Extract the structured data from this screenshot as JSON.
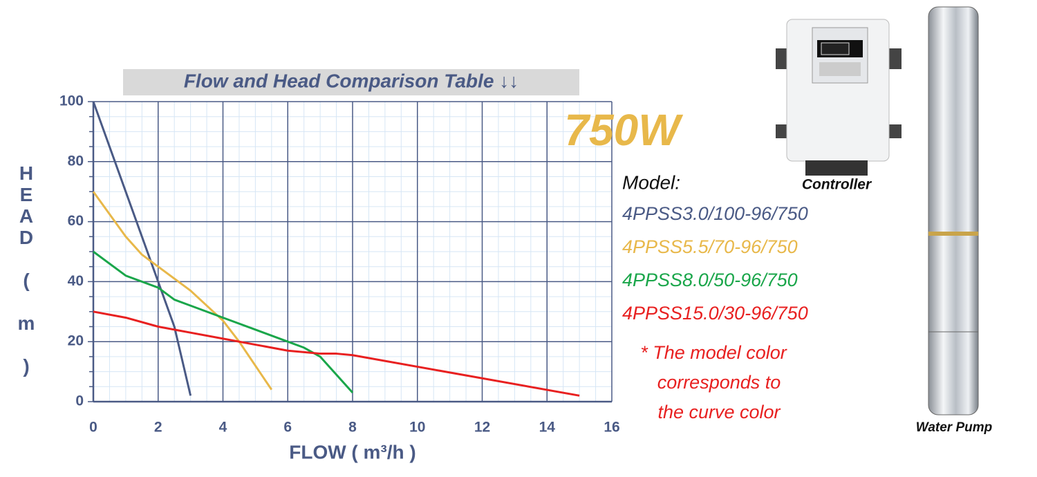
{
  "chart_data": {
    "type": "line",
    "title": "Flow and Head Comparison Table ↓↓",
    "power_label": "750W",
    "x_label": "FLOW ( m³/h )",
    "y_label": "HEAD ( m )",
    "xlim": [
      0,
      16
    ],
    "ylim": [
      0,
      100
    ],
    "xticks": [
      0,
      2,
      4,
      6,
      8,
      10,
      12,
      14,
      16
    ],
    "yticks": [
      0,
      20,
      40,
      60,
      80,
      100
    ],
    "grid": true,
    "legend_title": "Model:",
    "series": [
      {
        "name": "4PPSS3.0/100-96/750",
        "color": "#4a5a85",
        "x": [
          0,
          1,
          2,
          2.5,
          3
        ],
        "values": [
          100,
          70,
          40,
          25,
          2
        ]
      },
      {
        "name": "4PPSS5.5/70-96/750",
        "color": "#e8b84a",
        "x": [
          0,
          1,
          1.5,
          2,
          3,
          4,
          4.5,
          5.5
        ],
        "values": [
          70,
          55,
          49,
          45,
          37,
          27,
          20,
          4
        ]
      },
      {
        "name": "4PPSS8.0/50-96/750",
        "color": "#1aa64a",
        "x": [
          0,
          1,
          2,
          2.5,
          3,
          4,
          5,
          6,
          6.5,
          7,
          8
        ],
        "values": [
          50,
          42,
          38,
          34,
          32,
          28,
          24,
          20,
          18,
          15,
          3
        ]
      },
      {
        "name": "4PPSS15.0/30-96/750",
        "color": "#e82020",
        "x": [
          0,
          1,
          2,
          3,
          4,
          5,
          6,
          7,
          7.5,
          8,
          15
        ],
        "values": [
          30,
          28,
          25,
          23,
          21,
          19,
          17,
          16,
          16,
          15.5,
          2
        ]
      }
    ],
    "note": [
      "* The model color",
      "corresponds to",
      "the curve color"
    ],
    "images": [
      {
        "caption": "Controller"
      },
      {
        "caption": "Water Pump"
      }
    ]
  }
}
